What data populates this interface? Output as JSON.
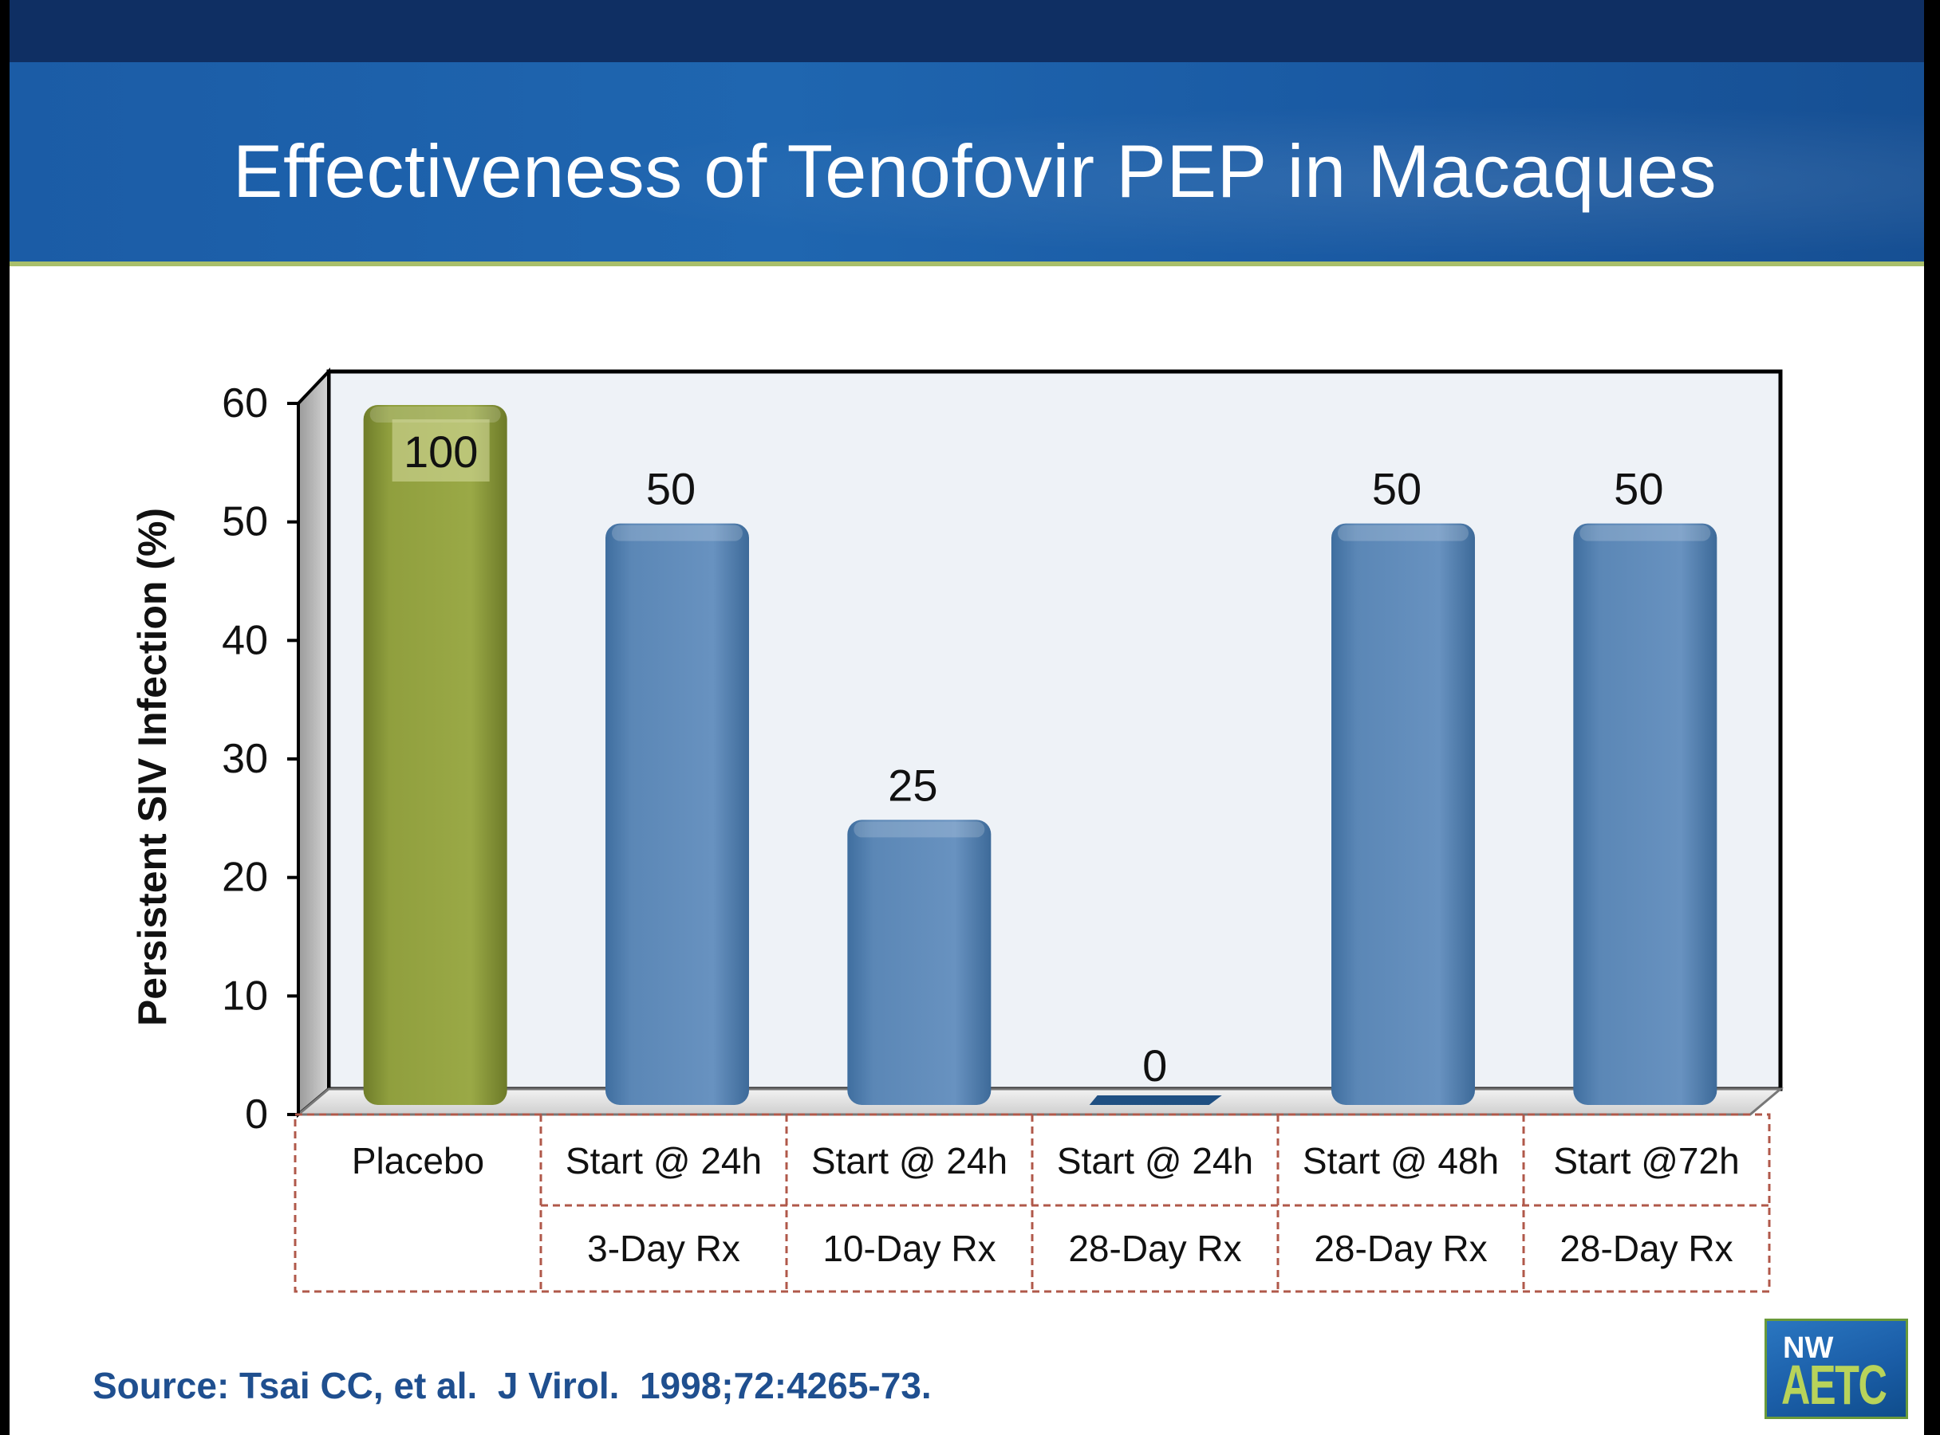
{
  "slide": {
    "title": "Effectiveness of Tenofovir PEP in Macaques",
    "source": "Source: Tsai CC, et al.  J Virol.  1998;72:4265-73.",
    "logo": {
      "top": "NW",
      "bottom": "AETC"
    }
  },
  "colors": {
    "header_dark": "#0f2f63",
    "header_band": "#1b5ca6",
    "header_rule": "#a9bf6a",
    "placebo_bar": "#8f9e3c",
    "treatment_bar": "#5b87b6",
    "zero_bar": "#1f4f82",
    "plot_background": "#eef2f7",
    "source_text": "#1f4f8f",
    "table_border": "#b0584a"
  },
  "chart_data": {
    "type": "bar",
    "ylabel": "Persistent SIV Infection (%)",
    "xlabel": "",
    "ylim": [
      0,
      60
    ],
    "yticks": [
      0,
      10,
      20,
      30,
      40,
      50,
      60
    ],
    "grid": false,
    "style": "3d",
    "categories": [
      {
        "line1": "Placebo",
        "line2": ""
      },
      {
        "line1": "Start @ 24h",
        "line2": "3-Day Rx"
      },
      {
        "line1": "Start @ 24h",
        "line2": "10-Day Rx"
      },
      {
        "line1": "Start @ 24h",
        "line2": "28-Day Rx"
      },
      {
        "line1": "Start @ 48h",
        "line2": "28-Day Rx"
      },
      {
        "line1": "Start @72h",
        "line2": "28-Day Rx"
      }
    ],
    "values": [
      100,
      50,
      25,
      0,
      50,
      50
    ],
    "data_labels": [
      "100",
      "50",
      "25",
      "0",
      "50",
      "50"
    ],
    "bar_colors": [
      "#8f9e3c",
      "#5b87b6",
      "#5b87b6",
      "#1f4f82",
      "#5b87b6",
      "#5b87b6"
    ]
  }
}
